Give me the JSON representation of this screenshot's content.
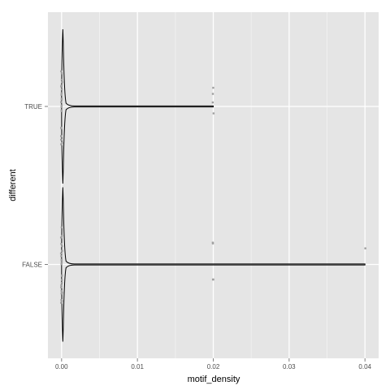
{
  "chart_data": {
    "type": "violin",
    "orientation": "horizontal",
    "xlabel": "motif_density",
    "ylabel": "different",
    "categories": [
      "FALSE",
      "TRUE"
    ],
    "xlim": [
      -0.0018,
      0.0418
    ],
    "xticks": [
      0.0,
      0.01,
      0.02,
      0.03,
      0.04
    ],
    "xtick_labels": [
      "0.00",
      "0.01",
      "0.02",
      "0.03",
      "0.04"
    ],
    "grid": true,
    "legend": "none",
    "colors": {
      "panel_bg": "#e5e5e5",
      "grid_major": "#ffffff",
      "grid_minor": "#f2f2f2",
      "violin": "#000000",
      "points": "#a0a0a0"
    },
    "series": [
      {
        "name": "TRUE",
        "min": 0.0,
        "max": 0.02,
        "mode": 0.0,
        "points": [
          0.0,
          0.0,
          0.0,
          0.0,
          0.0,
          0.0,
          0.0,
          0.0,
          0.0,
          0.0,
          0.0,
          0.0,
          0.0,
          0.0,
          0.0,
          0.0,
          0.0,
          0.0,
          0.0,
          0.0,
          0.0,
          0.0,
          0.0,
          0.0,
          0.0,
          0.02,
          0.02,
          0.02,
          0.02
        ]
      },
      {
        "name": "FALSE",
        "min": 0.0,
        "max": 0.04,
        "mode": 0.0,
        "points": [
          0.0,
          0.0,
          0.0,
          0.0,
          0.0,
          0.0,
          0.0,
          0.0,
          0.0,
          0.0,
          0.0,
          0.0,
          0.0,
          0.0,
          0.0,
          0.0,
          0.0,
          0.0,
          0.0,
          0.0,
          0.0,
          0.0,
          0.0,
          0.0,
          0.0,
          0.0,
          0.02,
          0.02,
          0.02,
          0.02,
          0.04
        ]
      }
    ]
  }
}
